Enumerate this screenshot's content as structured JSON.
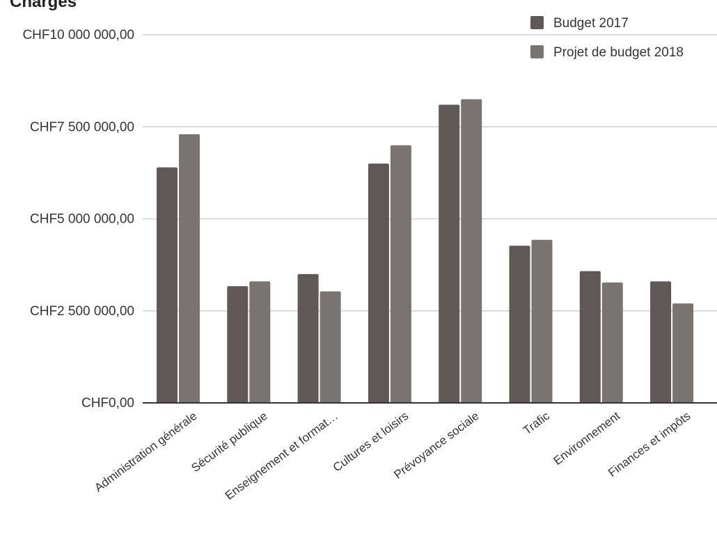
{
  "chart_data": {
    "type": "bar",
    "title": "Charges",
    "xlabel": "",
    "ylabel": "",
    "ylim": [
      0,
      10000000
    ],
    "yticks": [
      0,
      2500000,
      5000000,
      7500000,
      10000000
    ],
    "ytick_labels": [
      "CHF0,00",
      "CHF2 500 000,00",
      "CHF5 000 000,00",
      "CHF7 500 000,00",
      "CHF10 000 000,00"
    ],
    "grid": true,
    "legend_position": "top-right",
    "categories": [
      "Administration générale",
      "Sécurité publique",
      "Enseignement et format…",
      "Cultures et loisirs",
      "Prévoyance sociale",
      "Trafic",
      "Environnement",
      "Finances et impôts"
    ],
    "series": [
      {
        "name": "Budget 2017",
        "color": "#5f5855",
        "values": [
          6400000,
          3170000,
          3500000,
          6500000,
          8100000,
          4270000,
          3580000,
          3300000
        ]
      },
      {
        "name": "Projet de budget 2018",
        "color": "#7a7471",
        "values": [
          7300000,
          3300000,
          3030000,
          7000000,
          8250000,
          4430000,
          3270000,
          2700000
        ]
      }
    ]
  }
}
